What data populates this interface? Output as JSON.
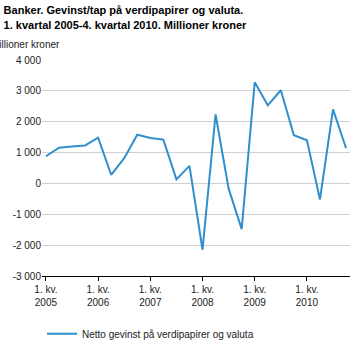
{
  "chart_data": {
    "type": "line",
    "title": "Banker. Gevinst/tap på verdipapirer og valuta.\n1. kvartal 2005-4. kvartal 2010. Millioner kroner",
    "y_label": "Millioner kroner",
    "categories": [
      "1. kv. 2005",
      null,
      null,
      null,
      "1. kv. 2006",
      null,
      null,
      null,
      "1. kv. 2007",
      null,
      null,
      null,
      "1. kv. 2008",
      null,
      null,
      null,
      "1. kv. 2009",
      null,
      null,
      null,
      "1. kv. 2010",
      null,
      null,
      null
    ],
    "series": [
      {
        "name": "Netto gevinst på verdipapirer og valuta",
        "color": "#2f8fce",
        "values": [
          880,
          1160,
          1200,
          1230,
          1480,
          280,
          820,
          1580,
          1470,
          1420,
          130,
          570,
          -2150,
          2240,
          -170,
          -1480,
          3280,
          2530,
          3020,
          1560,
          1400,
          -520,
          2400,
          1140
        ]
      }
    ],
    "ylim": [
      -3000,
      4000
    ],
    "yticks": [
      {
        "value": -3000,
        "label": "-3 000"
      },
      {
        "value": -2000,
        "label": "-2 000"
      },
      {
        "value": -1000,
        "label": "-1 000"
      },
      0,
      {
        "value": 1000,
        "label": "1 000"
      },
      {
        "value": 2000,
        "label": "2 000"
      },
      {
        "value": 3000,
        "label": "3 000"
      },
      {
        "value": 4000,
        "label": "4 000"
      }
    ],
    "grid": true,
    "legend": "bottom"
  }
}
